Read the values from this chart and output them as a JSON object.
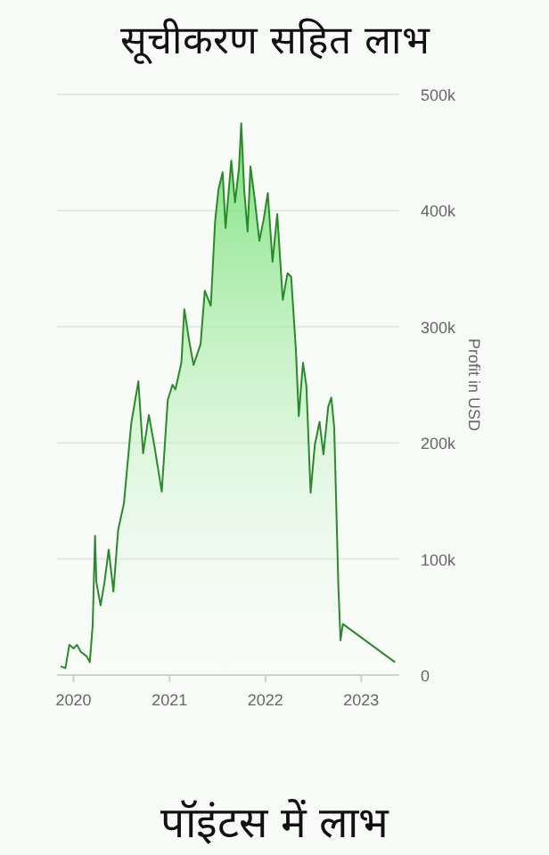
{
  "chart_data": {
    "type": "area",
    "title": "सूचीकरण सहित लाभ",
    "xlabel": "पॉइंटस में लाभ",
    "ylabel": "Profit in USD",
    "color": "#2a8a2a",
    "grid": "y",
    "x": [
      "2019-11-13",
      "2019-12-01",
      "2019-12-16",
      "2020-01-01",
      "2020-01-14",
      "2020-01-29",
      "2020-02-21",
      "2020-03-03",
      "2020-03-14",
      "2020-03-23",
      "2020-03-28",
      "2020-04-13",
      "2020-04-28",
      "2020-05-14",
      "2020-06-01",
      "2020-06-19",
      "2020-07-11",
      "2020-08-08",
      "2020-09-04",
      "2020-09-22",
      "2020-10-14",
      "2020-11-05",
      "2020-12-02",
      "2020-12-25",
      "2021-01-12",
      "2021-01-23",
      "2021-02-15",
      "2021-02-26",
      "2021-03-15",
      "2021-04-02",
      "2021-04-29",
      "2021-05-15",
      "2021-06-07",
      "2021-06-23",
      "2021-07-06",
      "2021-07-22",
      "2021-08-02",
      "2021-08-24",
      "2021-09-07",
      "2021-09-22",
      "2021-10-01",
      "2021-10-12",
      "2021-10-25",
      "2021-11-05",
      "2021-11-21",
      "2021-12-09",
      "2021-12-25",
      "2022-01-10",
      "2022-01-28",
      "2022-02-15",
      "2022-03-08",
      "2022-03-26",
      "2022-04-09",
      "2022-04-27",
      "2022-05-08",
      "2022-05-24",
      "2022-06-06",
      "2022-06-22",
      "2022-07-08",
      "2022-07-26",
      "2022-08-10",
      "2022-08-28",
      "2022-09-09",
      "2022-09-20",
      "2022-10-06",
      "2022-10-14",
      "2022-10-23",
      "2023-05-10"
    ],
    "values": [
      7600,
      6000,
      26000,
      23000,
      26000,
      20000,
      16000,
      11000,
      43000,
      120000,
      80000,
      60000,
      80000,
      108000,
      72000,
      125000,
      148000,
      217000,
      253000,
      191000,
      224000,
      196000,
      158000,
      237000,
      250000,
      246000,
      269000,
      315000,
      290000,
      267000,
      285000,
      331000,
      318000,
      390000,
      418000,
      433000,
      385000,
      443000,
      407000,
      436000,
      475000,
      418000,
      382000,
      438000,
      410000,
      374000,
      392000,
      415000,
      356000,
      397000,
      323000,
      346000,
      343000,
      280000,
      223000,
      269000,
      249000,
      157000,
      198000,
      218000,
      190000,
      231000,
      239000,
      213000,
      75000,
      30000,
      44000,
      11000
    ],
    "xlim": [
      "2019-11-06",
      "2023-05-19"
    ],
    "xticks": [
      {
        "value": "2020-01-01",
        "label": "2020"
      },
      {
        "value": "2021-01-01",
        "label": "2021"
      },
      {
        "value": "2022-01-01",
        "label": "2022"
      },
      {
        "value": "2023-01-01",
        "label": "2023"
      }
    ],
    "ylim": [
      0,
      500000
    ],
    "yticks": [
      {
        "value": 0,
        "label": "0"
      },
      {
        "value": 100000,
        "label": "100k"
      },
      {
        "value": 200000,
        "label": "200k"
      },
      {
        "value": 300000,
        "label": "300k"
      },
      {
        "value": 400000,
        "label": "400k"
      },
      {
        "value": 500000,
        "label": "500k"
      }
    ]
  }
}
